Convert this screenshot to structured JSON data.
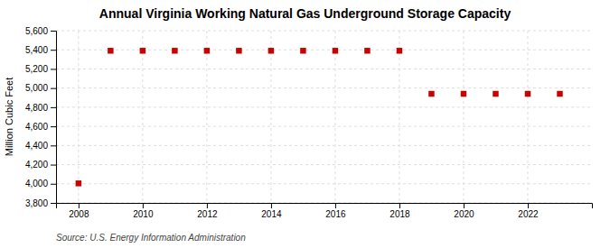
{
  "chart_data": {
    "type": "scatter",
    "title": "Annual Virginia Working Natural Gas Underground Storage Capacity",
    "ylabel": "Million Cubic Feet",
    "source": "Source: U.S. Energy Information Administration",
    "x": [
      2008,
      2009,
      2010,
      2011,
      2012,
      2013,
      2014,
      2015,
      2016,
      2017,
      2018,
      2019,
      2020,
      2021,
      2022,
      2023
    ],
    "values": [
      4004,
      5390,
      5390,
      5390,
      5390,
      5390,
      5390,
      5390,
      5390,
      5390,
      5390,
      4940,
      4940,
      4940,
      4940,
      4940
    ],
    "color": "#cc0000",
    "marker": "square",
    "xlim": [
      2007.3,
      2024.0
    ],
    "xticks": [
      2008,
      2010,
      2012,
      2014,
      2016,
      2018,
      2020,
      2022
    ],
    "ylim": [
      3800,
      5600
    ],
    "yticks": [
      {
        "value": 3800,
        "label": "3,800"
      },
      {
        "value": 4000,
        "label": "4,000"
      },
      {
        "value": 4200,
        "label": "4,200"
      },
      {
        "value": 4400,
        "label": "4,400"
      },
      {
        "value": 4600,
        "label": "4,600"
      },
      {
        "value": 4800,
        "label": "4,800"
      },
      {
        "value": 5000,
        "label": "5,000"
      },
      {
        "value": 5200,
        "label": "5,200"
      },
      {
        "value": 5400,
        "label": "5,400"
      },
      {
        "value": 5600,
        "label": "5,600"
      }
    ],
    "grid": true
  }
}
